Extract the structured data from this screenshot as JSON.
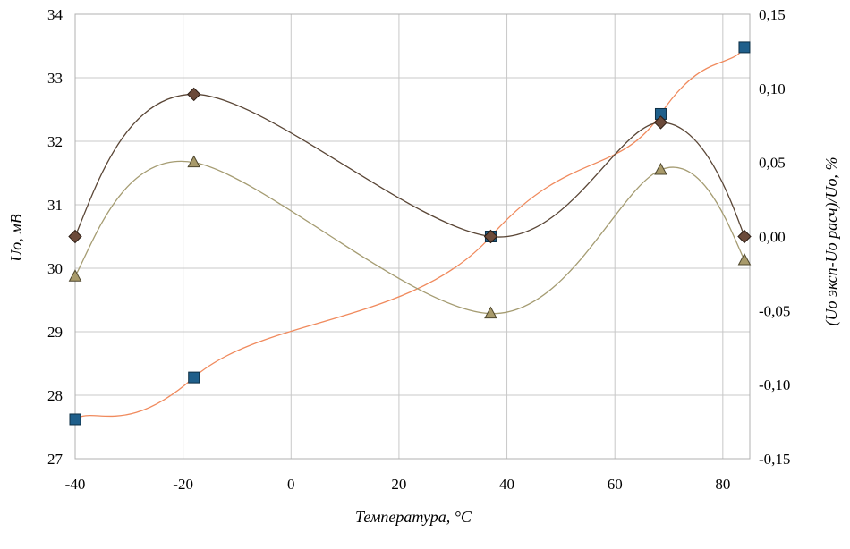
{
  "chart_data": {
    "type": "scatter",
    "title": "",
    "xlabel": "Температура, °C",
    "ylabel_left": "Uo, мВ",
    "ylabel_right": "(Uo эксп-Uo расч)/Uo, %",
    "xlim": [
      -40,
      85
    ],
    "ylim_left": [
      27,
      34
    ],
    "ylim_right": [
      -0.15,
      0.15
    ],
    "grid": true,
    "x_ticks": [
      "-40",
      "-20",
      "0",
      "20",
      "40",
      "60",
      "80"
    ],
    "y_left_ticks": [
      "27",
      "28",
      "29",
      "30",
      "31",
      "32",
      "33",
      "34"
    ],
    "y_right_ticks": [
      "-0,15",
      "-0,10",
      "-0,05",
      "0,00",
      "0,05",
      "0,10",
      "0,15"
    ],
    "series": [
      {
        "axis": "left",
        "marker": "square",
        "color": "#1f5f8b",
        "line_color": "#f08a5d",
        "x": [
          -40,
          -18,
          37,
          68.5,
          84
        ],
        "y": [
          27.62,
          28.28,
          30.5,
          32.43,
          33.48
        ]
      },
      {
        "axis": "right",
        "marker": "diamond",
        "color": "#6b4a3a",
        "line_color": "#5a4636",
        "x": [
          -40,
          -18,
          37,
          68.5,
          84
        ],
        "y": [
          0.0,
          0.096,
          0.0,
          0.077,
          0.0
        ]
      },
      {
        "axis": "right",
        "marker": "triangle",
        "color": "#a89a6a",
        "line_color": "#a59c72",
        "x": [
          -40,
          -18,
          37,
          68.5,
          84
        ],
        "y": [
          -0.027,
          0.05,
          -0.052,
          0.045,
          -0.016
        ]
      }
    ]
  }
}
